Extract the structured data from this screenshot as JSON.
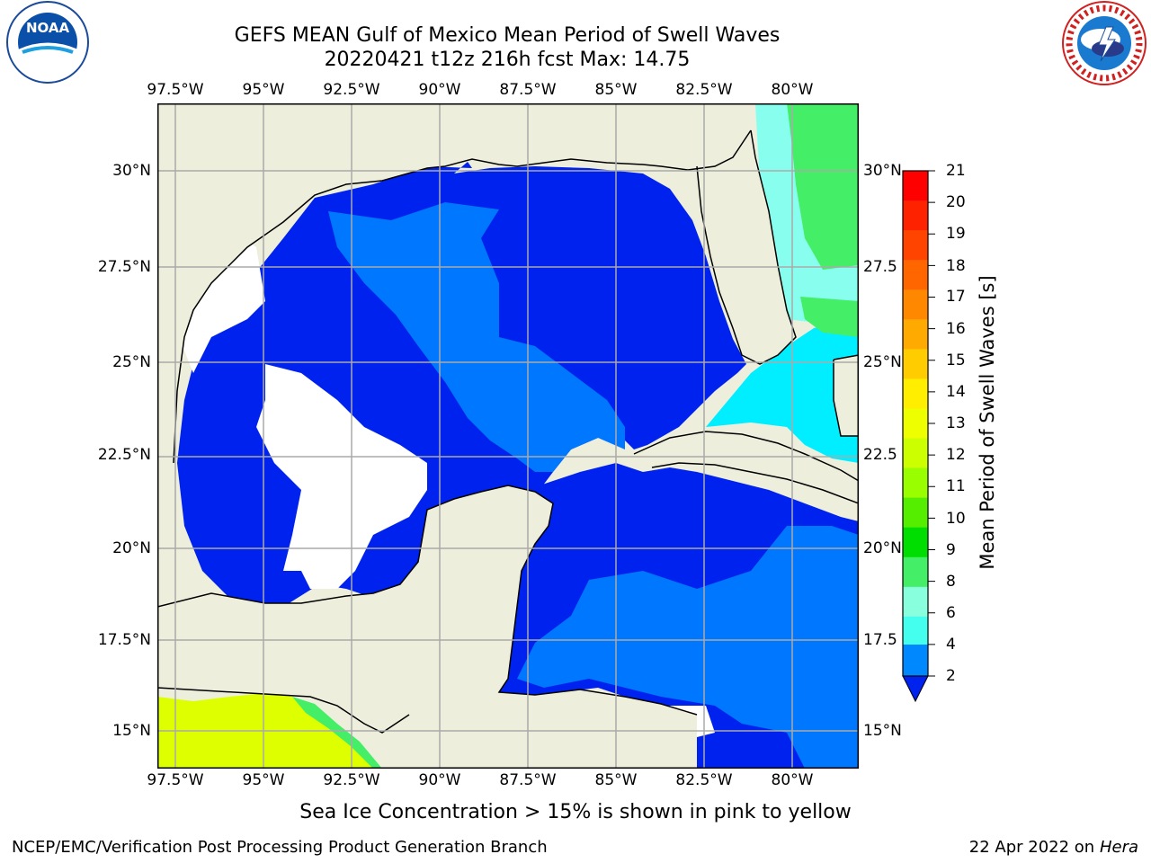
{
  "title_line1": "GEFS MEAN Gulf of Mexico Mean Period of Swell Waves",
  "title_line2": "20220421 t12z 216h fcst   Max: 14.75",
  "lon_ticks": [
    "97.5°W",
    "95°W",
    "92.5°W",
    "90°W",
    "87.5°W",
    "85°W",
    "82.5°W",
    "80°W"
  ],
  "lat_ticks_left": [
    "30°N",
    "27.5°N",
    "25°N",
    "22.5°N",
    "20°N",
    "17.5°N",
    "15°N"
  ],
  "lat_ticks_right": [
    "30°N",
    "27.5",
    "25°N",
    "22.5",
    "20°N",
    "17.5",
    "15°N"
  ],
  "colorbar": {
    "label": "Mean Period of Swell Waves [s]",
    "ticks": [
      "21",
      "20",
      "19",
      "18",
      "17",
      "16",
      "15",
      "14",
      "13",
      "12",
      "11",
      "10",
      "9",
      "8",
      "6",
      "4",
      "2"
    ],
    "colors": [
      "#ff0000",
      "#ff2200",
      "#ff4400",
      "#ff6600",
      "#ff8800",
      "#ffaa00",
      "#ffcc00",
      "#ffee00",
      "#eeff00",
      "#ccff00",
      "#99ff00",
      "#55ee00",
      "#00dd00",
      "#44ee66",
      "#88ffdd",
      "#44ffee",
      "#00eeff",
      "#0088ff"
    ],
    "extend_color": "#0022ee"
  },
  "colors": {
    "land": "#eeeedd",
    "swell_2_4": "#0022ee",
    "swell_4_6": "#0077ff",
    "swell_6_8": "#00eeff",
    "swell_8_9": "#88ffee",
    "swell_10_11": "#44ee66",
    "swell_12_15": "#ddff00",
    "no_data": "#ffffff",
    "grid": "#aaaaaa",
    "coast": "#000000"
  },
  "ice_note": "Sea Ice Concentration > 15% is shown in pink to yellow",
  "footer_left": "NCEP/EMC/Verification Post Processing Product Generation Branch",
  "footer_date": "22 Apr 2022 on ",
  "footer_machine": "Hera",
  "logos": {
    "left": "NOAA",
    "right": "NATIONAL WEATHER SERVICE"
  }
}
